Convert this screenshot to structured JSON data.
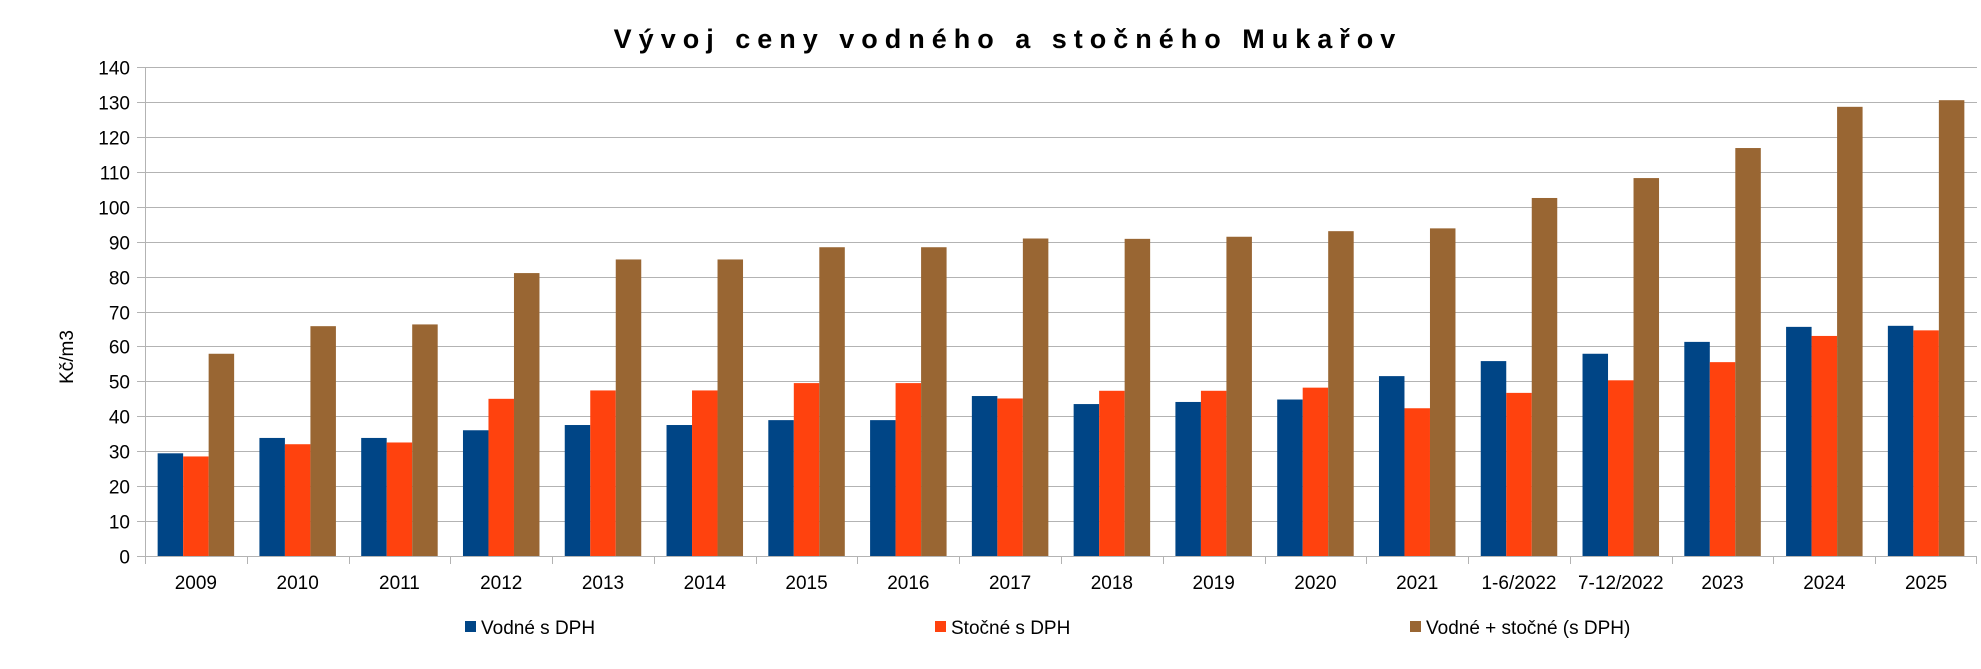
{
  "chart_data": {
    "type": "bar",
    "title": "Vývoj ceny vodného a stočného Mukařov",
    "xlabel": "",
    "ylabel": "Kč/m3",
    "ylim": [
      0,
      140
    ],
    "y_ticks": [
      0,
      10,
      20,
      30,
      40,
      50,
      60,
      70,
      80,
      90,
      100,
      110,
      120,
      130,
      140
    ],
    "grid": true,
    "legend_position": "bottom",
    "categories": [
      "2009",
      "2010",
      "2011",
      "2012",
      "2013",
      "2014",
      "2015",
      "2016",
      "2017",
      "2018",
      "2019",
      "2020",
      "2021",
      "1-6/2022",
      "7-12/2022",
      "2023",
      "2024",
      "2025"
    ],
    "series": [
      {
        "name": "Vodné s DPH",
        "color": "#004586",
        "values": [
          29.4,
          33.8,
          33.8,
          36.0,
          37.5,
          37.5,
          38.9,
          38.9,
          45.8,
          43.5,
          44.1,
          44.8,
          51.5,
          55.8,
          57.9,
          61.3,
          65.6,
          65.9
        ]
      },
      {
        "name": "Stočné s DPH",
        "color": "#ff420e",
        "values": [
          28.5,
          32.0,
          32.5,
          45.0,
          47.4,
          47.4,
          49.5,
          49.5,
          45.1,
          47.3,
          47.3,
          48.2,
          42.3,
          46.7,
          50.3,
          55.5,
          63.0,
          64.6
        ]
      },
      {
        "name": "Vodné + stočné (s DPH)",
        "color": "#996633",
        "values": [
          57.9,
          65.8,
          66.3,
          81.0,
          84.9,
          84.9,
          88.4,
          88.4,
          90.9,
          90.8,
          91.4,
          93.0,
          93.8,
          102.5,
          108.2,
          116.8,
          128.6,
          130.5
        ]
      }
    ]
  }
}
